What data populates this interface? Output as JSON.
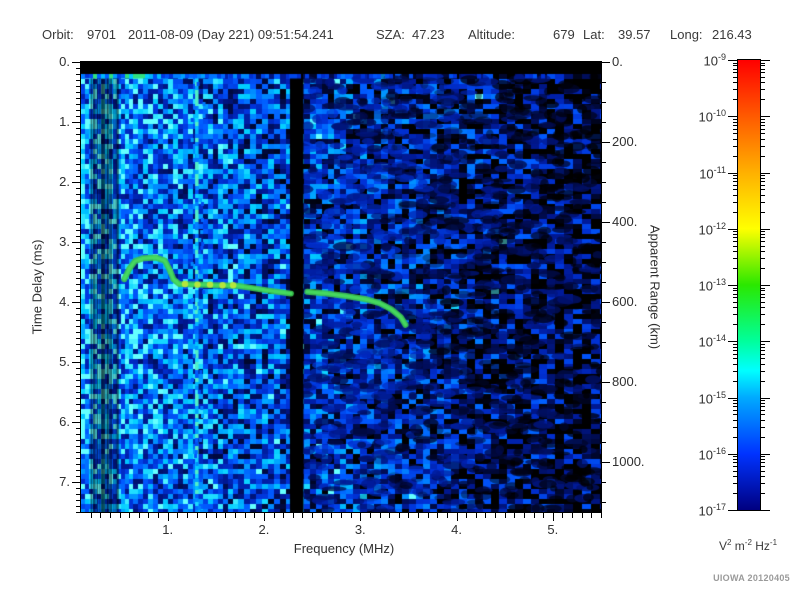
{
  "header": {
    "orbit_label": "Orbit:",
    "orbit": "9701",
    "datetime": "2011-08-09 (Day 221) 09:51:54.241",
    "sza_label": "SZA:",
    "sza": "47.23",
    "altitude_label": "Altitude:",
    "altitude": "679",
    "lat_label": "Lat:",
    "lat": "39.57",
    "long_label": "Long:",
    "long": "216.43"
  },
  "watermark": "UIOWA 20120405",
  "chart_data": {
    "type": "heatmap",
    "xlabel": "Frequency (MHz)",
    "ylabel_left": "Time Delay (ms)",
    "ylabel_right": "Apparent Range (km)",
    "x_range": [
      0.1,
      5.5
    ],
    "x_ticks": [
      1,
      2,
      3,
      4,
      5
    ],
    "x_minor_step": 0.1,
    "y_left_range": [
      0,
      7.5
    ],
    "y_left_ticks": [
      0,
      1,
      2,
      3,
      4,
      5,
      6,
      7
    ],
    "y_left_minor_step": 0.1,
    "y_right_range": [
      0,
      1125
    ],
    "y_right_ticks": [
      0,
      200,
      400,
      600,
      800,
      1000
    ],
    "y_right_minor_step": 50,
    "grid": false,
    "colorbar": {
      "scale": "log",
      "exponents": [
        -9,
        -10,
        -11,
        -12,
        -13,
        -14,
        -15,
        -16,
        -17
      ],
      "tick_base": "10",
      "unit_parts": [
        {
          "base": "V",
          "sup": "2"
        },
        {
          "base": " m",
          "sup": "-2"
        },
        {
          "base": " Hz",
          "sup": "-1"
        }
      ],
      "gradient": [
        [
          "#ff0000",
          0.0
        ],
        [
          "#ff5a00",
          0.125
        ],
        [
          "#ffb000",
          0.25
        ],
        [
          "#ffff00",
          0.375
        ],
        [
          "#2ae800",
          0.5
        ],
        [
          "#00ff9c",
          0.625
        ],
        [
          "#00ffff",
          0.69
        ],
        [
          "#00aaff",
          0.75
        ],
        [
          "#0033ff",
          0.875
        ],
        [
          "#000080",
          1.0
        ]
      ]
    },
    "features": {
      "top_blank_band": {
        "delay_max_ms": 0.2
      },
      "surface_line": {
        "delay_ms": 0.24,
        "green_f_max": 0.85,
        "fade_f_max": 4.2
      },
      "dark_band": {
        "f_start": 0.2,
        "f_end": 0.49
      },
      "bright_line": {
        "f": 1.3,
        "color": "#50f0c8"
      },
      "black_stripe": {
        "f_start": 2.27,
        "f_end": 2.41
      },
      "echo_trace": {
        "color": "#3cc850",
        "highlight_color": "#49dd60",
        "dot_color": "#b4e63c",
        "segments": [
          [
            [
              0.55,
              3.62
            ],
            [
              0.6,
              3.45
            ],
            [
              0.66,
              3.32
            ],
            [
              0.75,
              3.27
            ],
            [
              0.88,
              3.26
            ],
            [
              0.97,
              3.31
            ],
            [
              1.02,
              3.46
            ],
            [
              1.06,
              3.62
            ],
            [
              1.12,
              3.7
            ],
            [
              1.3,
              3.71
            ],
            [
              1.5,
              3.72
            ],
            [
              1.72,
              3.73
            ],
            [
              1.85,
              3.76
            ],
            [
              2.05,
              3.81
            ],
            [
              2.28,
              3.86
            ]
          ],
          [
            [
              2.45,
              3.83
            ],
            [
              2.65,
              3.86
            ],
            [
              2.85,
              3.9
            ],
            [
              3.05,
              3.95
            ],
            [
              3.2,
              4.02
            ],
            [
              3.32,
              4.12
            ],
            [
              3.42,
              4.25
            ],
            [
              3.47,
              4.38
            ]
          ]
        ],
        "bright_dots": [
          [
            1.18,
            3.7
          ],
          [
            1.31,
            3.71
          ],
          [
            1.44,
            3.71
          ],
          [
            1.57,
            3.72
          ],
          [
            1.68,
            3.72
          ]
        ]
      },
      "noise": {
        "seed": 97011,
        "left_intensity": 0.72,
        "right_intensity": 0.1
      }
    }
  }
}
